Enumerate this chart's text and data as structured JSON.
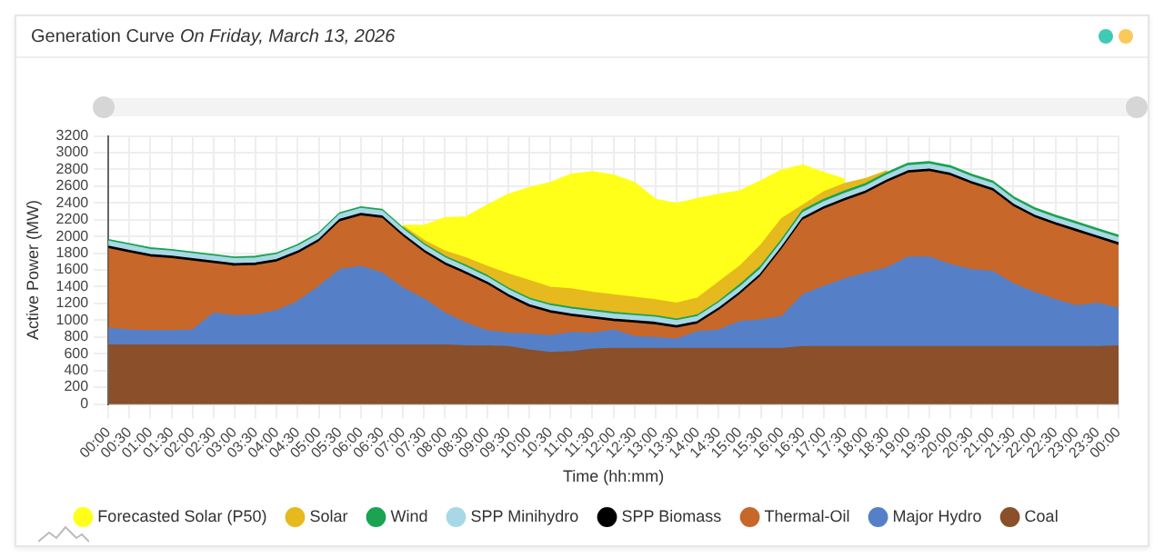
{
  "chart_data": {
    "type": "area",
    "title": "Generation Curve",
    "subtitle": "On Friday, March 13, 2026",
    "xlabel": "Time (hh:mm)",
    "ylabel": "Active Power (MW)",
    "categories": [
      "00:00",
      "00:30",
      "01:00",
      "01:30",
      "02:00",
      "02:30",
      "03:00",
      "03:30",
      "04:00",
      "04:30",
      "05:00",
      "05:30",
      "06:00",
      "06:30",
      "07:00",
      "07:30",
      "08:00",
      "08:30",
      "09:00",
      "09:30",
      "10:00",
      "10:30",
      "11:00",
      "11:30",
      "12:00",
      "12:30",
      "13:00",
      "13:30",
      "14:00",
      "14:30",
      "15:00",
      "15:30",
      "16:00",
      "16:30",
      "17:00",
      "17:30",
      "18:00",
      "18:30",
      "19:00",
      "19:30",
      "20:00",
      "20:30",
      "21:00",
      "21:30",
      "22:00",
      "22:30",
      "23:00",
      "23:30",
      "00:00"
    ],
    "stacked": true,
    "ylim": [
      0,
      3200
    ],
    "yticks": [
      0,
      200,
      400,
      600,
      800,
      1000,
      1200,
      1400,
      1600,
      1800,
      2000,
      2200,
      2400,
      2600,
      2800,
      3000,
      3200
    ],
    "grid": true,
    "legend": "bottom",
    "marker": "none",
    "series": [
      {
        "name": "Coal",
        "color": "#8b4f2a",
        "values": [
          700,
          700,
          700,
          700,
          700,
          700,
          700,
          700,
          700,
          700,
          700,
          700,
          700,
          700,
          700,
          700,
          700,
          690,
          690,
          680,
          640,
          610,
          620,
          650,
          660,
          660,
          660,
          660,
          660,
          660,
          660,
          660,
          660,
          680,
          680,
          680,
          680,
          680,
          680,
          680,
          680,
          680,
          680,
          680,
          680,
          680,
          680,
          680,
          690
        ]
      },
      {
        "name": "Major Hydro",
        "color": "#5580c8",
        "values": [
          200,
          180,
          170,
          170,
          180,
          380,
          350,
          360,
          410,
          520,
          700,
          900,
          940,
          860,
          680,
          550,
          380,
          270,
          180,
          160,
          190,
          200,
          230,
          190,
          220,
          140,
          130,
          110,
          200,
          220,
          320,
          340,
          380,
          620,
          720,
          810,
          880,
          940,
          1070,
          1070,
          980,
          920,
          900,
          750,
          650,
          560,
          490,
          520,
          450
        ]
      },
      {
        "name": "Thermal-Oil",
        "color": "#c8672a",
        "values": [
          950,
          920,
          880,
          860,
          820,
          590,
          590,
          590,
          580,
          570,
          530,
          570,
          600,
          650,
          610,
          550,
          570,
          580,
          550,
          430,
          320,
          270,
          190,
          170,
          100,
          160,
          150,
          130,
          90,
          230,
          320,
          520,
          800,
          890,
          920,
          930,
          950,
          1020,
          1000,
          1020,
          1060,
          1020,
          960,
          920,
          890,
          890,
          880,
          770,
          750
        ]
      },
      {
        "name": "SPP Biomass",
        "color": "#000000",
        "values": [
          30,
          30,
          30,
          30,
          30,
          30,
          30,
          30,
          30,
          30,
          30,
          30,
          30,
          30,
          30,
          30,
          30,
          30,
          30,
          30,
          30,
          30,
          30,
          30,
          30,
          30,
          30,
          30,
          30,
          30,
          30,
          30,
          30,
          30,
          30,
          30,
          30,
          30,
          30,
          30,
          30,
          30,
          30,
          30,
          30,
          30,
          30,
          30,
          30
        ]
      },
      {
        "name": "SPP Minihydro",
        "color": "#a8d8e6",
        "values": [
          60,
          60,
          60,
          60,
          60,
          60,
          60,
          60,
          60,
          60,
          60,
          60,
          60,
          60,
          60,
          60,
          60,
          60,
          60,
          60,
          60,
          60,
          60,
          60,
          60,
          60,
          60,
          60,
          60,
          60,
          60,
          60,
          60,
          60,
          60,
          60,
          60,
          60,
          60,
          60,
          60,
          60,
          60,
          60,
          60,
          60,
          60,
          60,
          60
        ]
      },
      {
        "name": "Wind",
        "color": "#1aa350",
        "values": [
          20,
          20,
          20,
          20,
          20,
          20,
          20,
          20,
          20,
          20,
          20,
          20,
          20,
          20,
          20,
          20,
          20,
          20,
          20,
          20,
          20,
          20,
          20,
          20,
          20,
          20,
          20,
          20,
          20,
          20,
          30,
          30,
          30,
          30,
          30,
          30,
          30,
          30,
          30,
          30,
          30,
          30,
          30,
          30,
          30,
          30,
          30,
          30,
          30
        ]
      },
      {
        "name": "Solar",
        "color": "#e6b91e",
        "values": [
          null,
          null,
          null,
          null,
          null,
          null,
          null,
          null,
          null,
          null,
          null,
          null,
          null,
          null,
          20,
          40,
          60,
          90,
          110,
          170,
          210,
          200,
          220,
          210,
          210,
          200,
          190,
          190,
          200,
          230,
          220,
          250,
          250,
          60,
          90,
          90,
          60,
          20,
          null,
          null,
          null,
          null,
          null,
          null,
          null,
          null,
          null,
          null,
          null
        ]
      },
      {
        "name": "Forecasted Solar (P50)",
        "color": "#ffff1a",
        "values": [
          null,
          null,
          null,
          null,
          null,
          null,
          null,
          null,
          null,
          null,
          null,
          null,
          null,
          null,
          10,
          180,
          400,
          490,
          730,
          950,
          1110,
          1250,
          1370,
          1440,
          1430,
          1370,
          1200,
          1190,
          1190,
          1050,
          900,
          770,
          580,
          480,
          230,
          50,
          null,
          null,
          null,
          null,
          null,
          null,
          null,
          null,
          null,
          null,
          null,
          null,
          null
        ]
      }
    ]
  }
}
